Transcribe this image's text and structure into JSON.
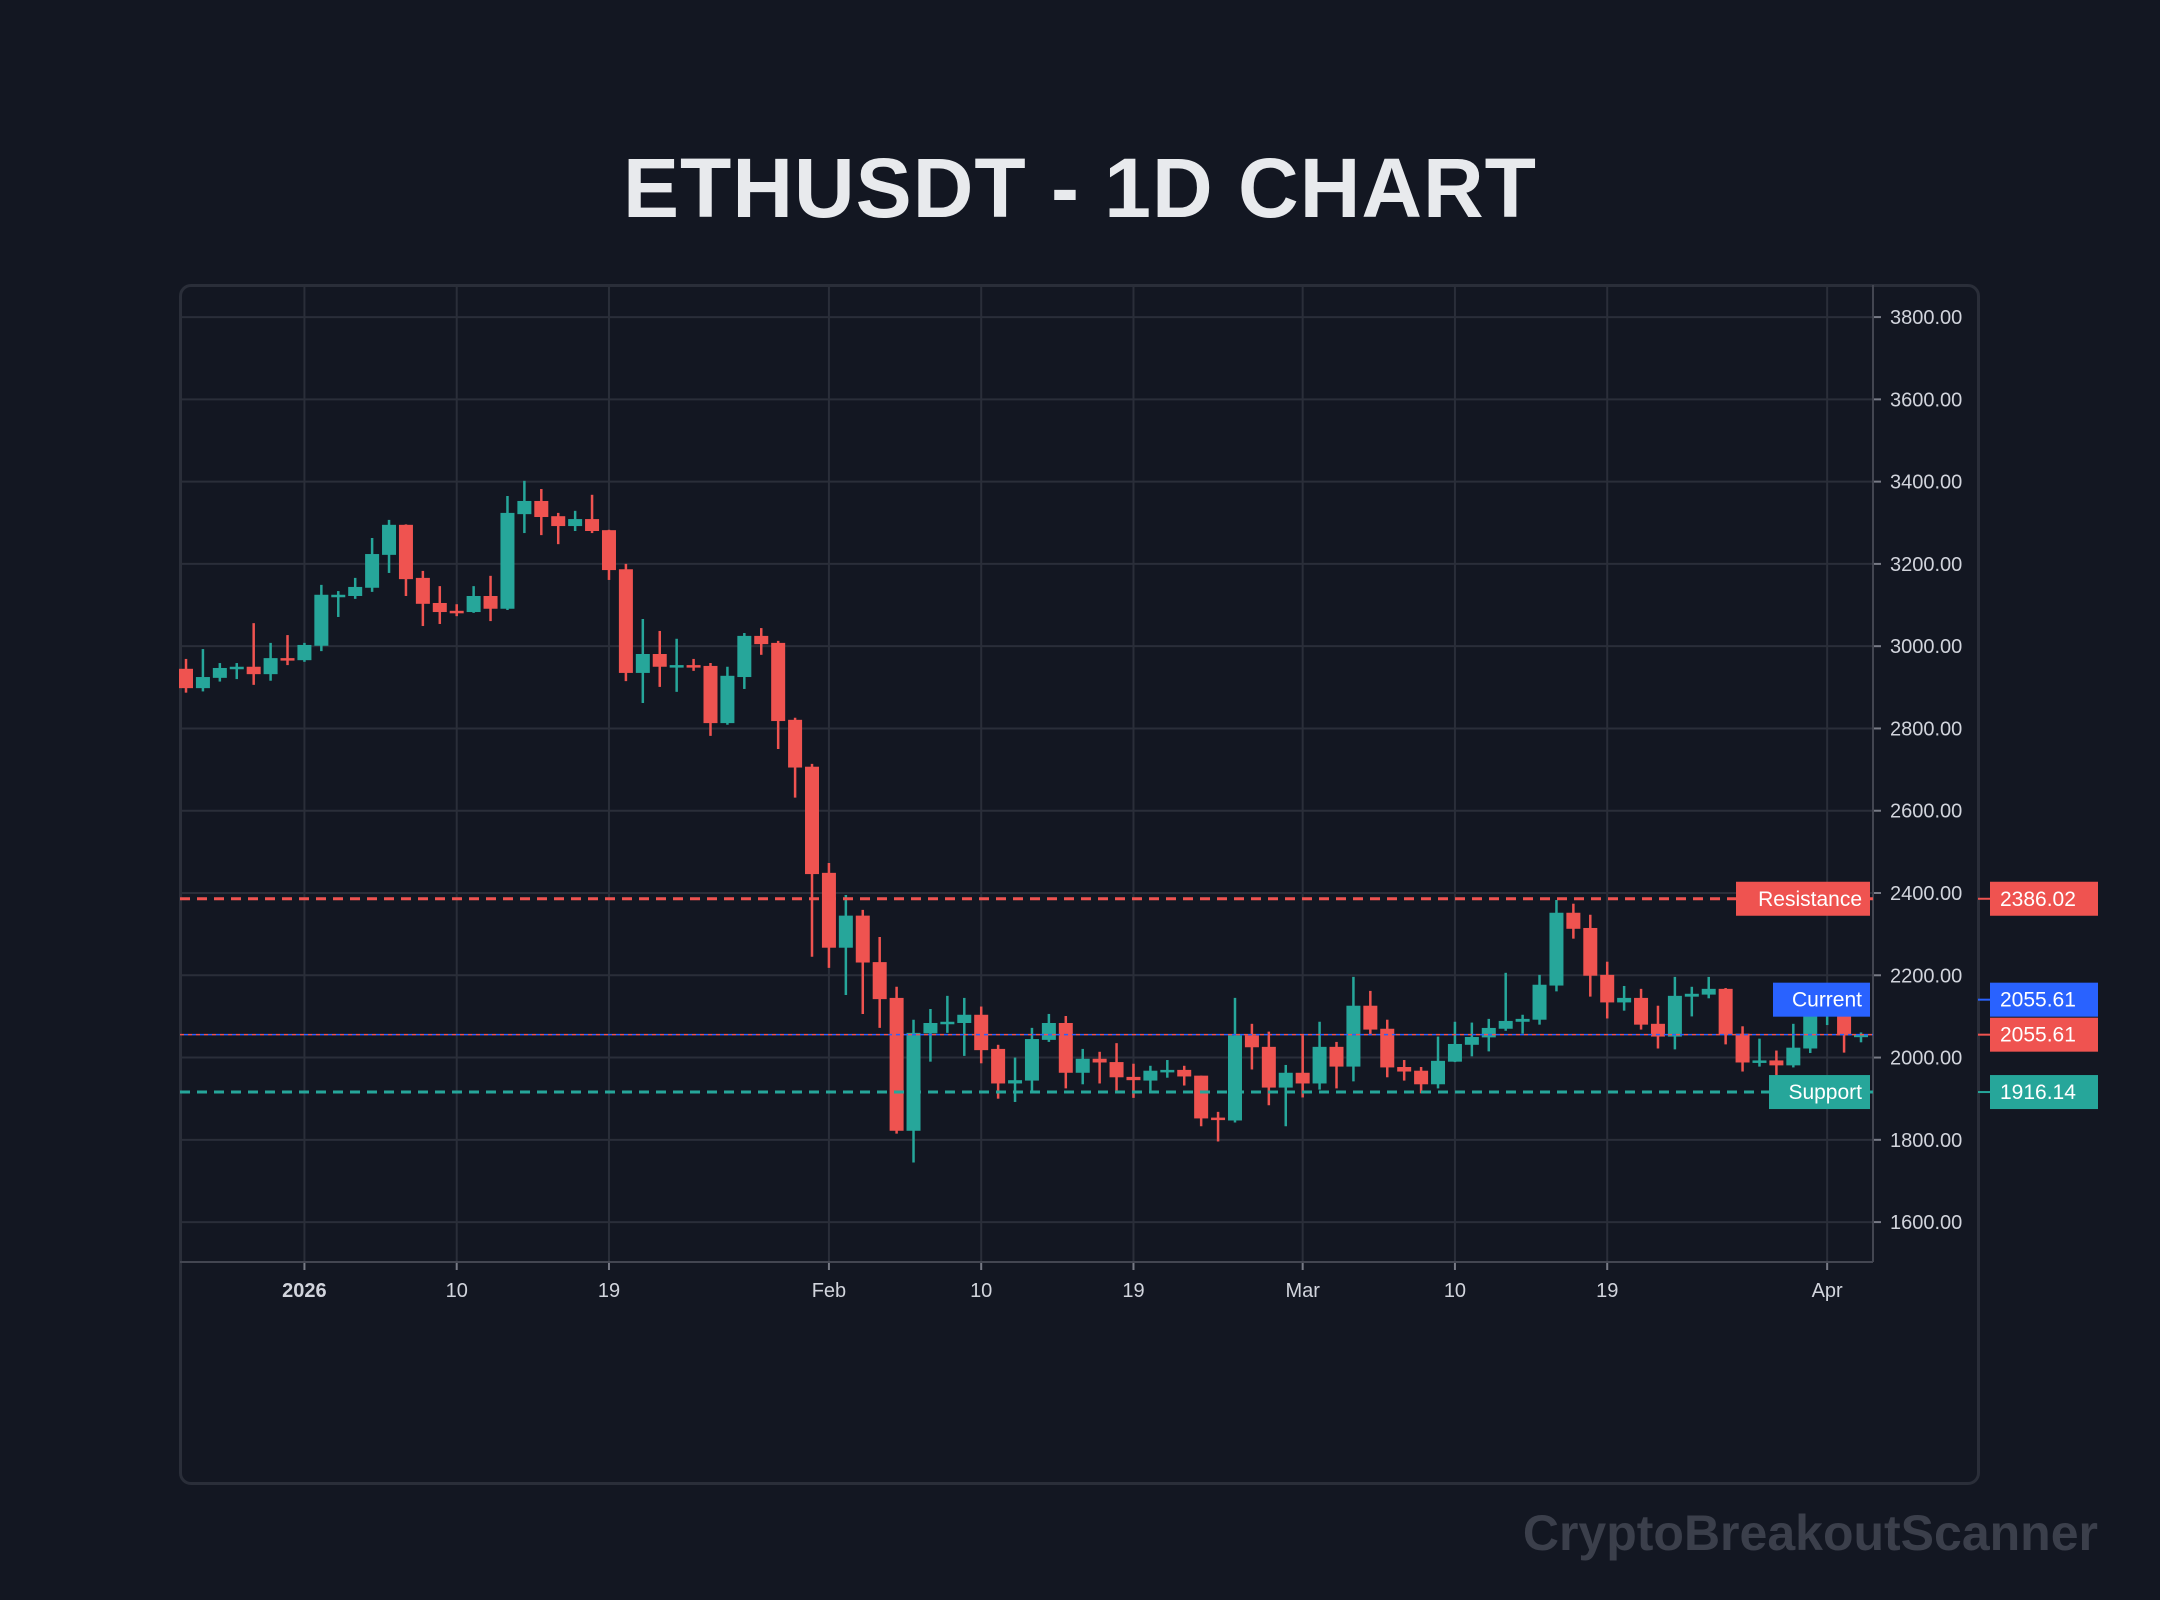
{
  "title": "ETHUSDT - 1D CHART",
  "watermark": "CryptoBreakoutScanner",
  "colors": {
    "background": "#131722",
    "grid": "#2a2e39",
    "up": "#26a69a",
    "down": "#ef5350",
    "current": "#2962ff",
    "text": "#d1d4dc"
  },
  "chart_data": {
    "type": "candlestick",
    "title": "ETHUSDT - 1D CHART",
    "xlabel": "",
    "ylabel": "",
    "ylim": [
      1503,
      3878
    ],
    "grid": true,
    "y_ticks": [
      "1600.00",
      "1800.00",
      "2000.00",
      "2200.00",
      "2400.00",
      "2600.00",
      "2800.00",
      "3000.00",
      "3200.00",
      "3400.00",
      "3600.00",
      "3800.00"
    ],
    "x_ticks": [
      {
        "date": "2026-01-01",
        "label": "2026",
        "bold": true
      },
      {
        "date": "2026-01-10",
        "label": "10"
      },
      {
        "date": "2026-01-19",
        "label": "19"
      },
      {
        "date": "2026-02-01",
        "label": "Feb"
      },
      {
        "date": "2026-02-10",
        "label": "10"
      },
      {
        "date": "2026-02-19",
        "label": "19"
      },
      {
        "date": "2026-03-01",
        "label": "Mar"
      },
      {
        "date": "2026-03-10",
        "label": "10"
      },
      {
        "date": "2026-03-19",
        "label": "19"
      },
      {
        "date": "2026-04-01",
        "label": "Apr"
      }
    ],
    "levels": [
      {
        "name": "Resistance",
        "value": 2386.02,
        "label": "2386.02",
        "color": "#ef5350",
        "style": "dashed"
      },
      {
        "name": "Current",
        "value": 2055.61,
        "label": "2055.61",
        "color": "#2962ff",
        "style": "dotted"
      },
      {
        "name": "Support",
        "value": 1916.14,
        "label": "1916.14",
        "color": "#26a69a",
        "style": "dashed"
      }
    ],
    "last_price": {
      "value": 2055.61,
      "label": "2055.61"
    },
    "candle_fields": [
      "date",
      "open",
      "high",
      "low",
      "close"
    ],
    "candles": [
      [
        "2025-12-25",
        2945,
        2969,
        2887,
        2898
      ],
      [
        "2025-12-26",
        2898,
        2993,
        2890,
        2925
      ],
      [
        "2025-12-27",
        2923,
        2959,
        2914,
        2947
      ],
      [
        "2025-12-28",
        2946,
        2959,
        2920,
        2950
      ],
      [
        "2025-12-29",
        2950,
        3056,
        2906,
        2932
      ],
      [
        "2025-12-30",
        2932,
        3008,
        2916,
        2971
      ],
      [
        "2025-12-31",
        2971,
        3027,
        2954,
        2966
      ],
      [
        "2026-01-01",
        2966,
        3008,
        2962,
        3003
      ],
      [
        "2026-01-02",
        3001,
        3149,
        2988,
        3125
      ],
      [
        "2026-01-03",
        3122,
        3134,
        3071,
        3125
      ],
      [
        "2026-01-04",
        3122,
        3166,
        3115,
        3144
      ],
      [
        "2026-01-05",
        3142,
        3263,
        3132,
        3224
      ],
      [
        "2026-01-06",
        3222,
        3307,
        3178,
        3295
      ],
      [
        "2026-01-07",
        3295,
        3296,
        3122,
        3163
      ],
      [
        "2026-01-08",
        3166,
        3183,
        3049,
        3103
      ],
      [
        "2026-01-09",
        3105,
        3146,
        3054,
        3083
      ],
      [
        "2026-01-10",
        3086,
        3102,
        3073,
        3083
      ],
      [
        "2026-01-11",
        3083,
        3146,
        3081,
        3122
      ],
      [
        "2026-01-12",
        3122,
        3171,
        3061,
        3091
      ],
      [
        "2026-01-13",
        3091,
        3365,
        3088,
        3324
      ],
      [
        "2026-01-14",
        3321,
        3402,
        3275,
        3353
      ],
      [
        "2026-01-15",
        3353,
        3382,
        3270,
        3314
      ],
      [
        "2026-01-16",
        3316,
        3324,
        3248,
        3292
      ],
      [
        "2026-01-17",
        3292,
        3329,
        3280,
        3309
      ],
      [
        "2026-01-18",
        3309,
        3368,
        3275,
        3280
      ],
      [
        "2026-01-19",
        3282,
        3283,
        3161,
        3185
      ],
      [
        "2026-01-20",
        3187,
        3200,
        2915,
        2935
      ],
      [
        "2026-01-21",
        2935,
        3066,
        2862,
        2981
      ],
      [
        "2026-01-22",
        2981,
        3037,
        2901,
        2950
      ],
      [
        "2026-01-23",
        2950,
        3018,
        2889,
        2954
      ],
      [
        "2026-01-24",
        2954,
        2969,
        2940,
        2950
      ],
      [
        "2026-01-25",
        2952,
        2959,
        2782,
        2813
      ],
      [
        "2026-01-26",
        2813,
        2950,
        2809,
        2928
      ],
      [
        "2026-01-27",
        2925,
        3032,
        2896,
        3025
      ],
      [
        "2026-01-28",
        3025,
        3044,
        2979,
        3005
      ],
      [
        "2026-01-29",
        3008,
        3013,
        2750,
        2818
      ],
      [
        "2026-01-30",
        2821,
        2826,
        2632,
        2705
      ],
      [
        "2026-01-31",
        2707,
        2714,
        2245,
        2446
      ],
      [
        "2026-02-01",
        2449,
        2473,
        2218,
        2267
      ],
      [
        "2026-02-02",
        2267,
        2395,
        2152,
        2345
      ],
      [
        "2026-02-03",
        2345,
        2359,
        2106,
        2231
      ],
      [
        "2026-02-04",
        2232,
        2293,
        2072,
        2142
      ],
      [
        "2026-02-05",
        2145,
        2172,
        1815,
        1822
      ],
      [
        "2026-02-06",
        1822,
        2092,
        1745,
        2060
      ],
      [
        "2026-02-07",
        2059,
        2118,
        1990,
        2084
      ],
      [
        "2026-02-08",
        2084,
        2150,
        2060,
        2087
      ],
      [
        "2026-02-09",
        2084,
        2145,
        2004,
        2104
      ],
      [
        "2026-02-10",
        2104,
        2124,
        1986,
        2018
      ],
      [
        "2026-02-11",
        2021,
        2031,
        1900,
        1937
      ],
      [
        "2026-02-12",
        1937,
        2000,
        1892,
        1945
      ],
      [
        "2026-02-13",
        1944,
        2072,
        1917,
        2045
      ],
      [
        "2026-02-14",
        2043,
        2106,
        2038,
        2084
      ],
      [
        "2026-02-15",
        2084,
        2101,
        1925,
        1963
      ],
      [
        "2026-02-16",
        1963,
        2021,
        1935,
        1997
      ],
      [
        "2026-02-17",
        1997,
        2014,
        1937,
        1988
      ],
      [
        "2026-02-18",
        1989,
        2035,
        1920,
        1952
      ],
      [
        "2026-02-19",
        1953,
        1985,
        1902,
        1945
      ],
      [
        "2026-02-20",
        1944,
        1980,
        1920,
        1968
      ],
      [
        "2026-02-21",
        1965,
        1994,
        1951,
        1970
      ],
      [
        "2026-02-22",
        1970,
        1980,
        1932,
        1954
      ],
      [
        "2026-02-23",
        1956,
        1956,
        1833,
        1852
      ],
      [
        "2026-02-24",
        1854,
        1868,
        1796,
        1848
      ],
      [
        "2026-02-25",
        1847,
        2145,
        1842,
        2054
      ],
      [
        "2026-02-26",
        2054,
        2082,
        1971,
        2025
      ],
      [
        "2026-02-27",
        2026,
        2063,
        1884,
        1927
      ],
      [
        "2026-02-28",
        1927,
        1982,
        1833,
        1963
      ],
      [
        "2026-03-01",
        1963,
        2054,
        1903,
        1937
      ],
      [
        "2026-03-02",
        1937,
        2087,
        1922,
        2026
      ],
      [
        "2026-03-03",
        2026,
        2038,
        1925,
        1978
      ],
      [
        "2026-03-04",
        1978,
        2196,
        1942,
        2126
      ],
      [
        "2026-03-05",
        2126,
        2162,
        2054,
        2068
      ],
      [
        "2026-03-06",
        2070,
        2092,
        1952,
        1976
      ],
      [
        "2026-03-07",
        1977,
        1994,
        1944,
        1966
      ],
      [
        "2026-03-08",
        1968,
        1977,
        1913,
        1935
      ],
      [
        "2026-03-09",
        1935,
        2051,
        1925,
        1992
      ],
      [
        "2026-03-10",
        1990,
        2087,
        1989,
        2033
      ],
      [
        "2026-03-11",
        2031,
        2085,
        2003,
        2050
      ],
      [
        "2026-03-12",
        2049,
        2094,
        2015,
        2072
      ],
      [
        "2026-03-13",
        2070,
        2206,
        2065,
        2089
      ],
      [
        "2026-03-14",
        2087,
        2104,
        2058,
        2094
      ],
      [
        "2026-03-15",
        2092,
        2201,
        2080,
        2177
      ],
      [
        "2026-03-16",
        2175,
        2383,
        2161,
        2352
      ],
      [
        "2026-03-17",
        2352,
        2374,
        2289,
        2313
      ],
      [
        "2026-03-18",
        2315,
        2347,
        2148,
        2199
      ],
      [
        "2026-03-19",
        2201,
        2233,
        2095,
        2134
      ],
      [
        "2026-03-20",
        2134,
        2174,
        2114,
        2145
      ],
      [
        "2026-03-21",
        2145,
        2167,
        2068,
        2080
      ],
      [
        "2026-03-22",
        2082,
        2126,
        2022,
        2051
      ],
      [
        "2026-03-23",
        2051,
        2196,
        2020,
        2150
      ],
      [
        "2026-03-24",
        2148,
        2172,
        2100,
        2155
      ],
      [
        "2026-03-25",
        2153,
        2196,
        2144,
        2167
      ],
      [
        "2026-03-26",
        2167,
        2169,
        2032,
        2056
      ],
      [
        "2026-03-27",
        2058,
        2076,
        1966,
        1988
      ],
      [
        "2026-03-28",
        1988,
        2046,
        1978,
        1993
      ],
      [
        "2026-03-29",
        1993,
        2017,
        1935,
        1981
      ],
      [
        "2026-03-30",
        1981,
        2082,
        1976,
        2024
      ],
      [
        "2026-03-31",
        2022,
        2118,
        2011,
        2104
      ],
      [
        "2026-04-01",
        2102,
        2165,
        2079,
        2136
      ],
      [
        "2026-04-02",
        2137,
        2157,
        2012,
        2054
      ],
      [
        "2026-04-03",
        2054,
        2061,
        2037,
        2055.61
      ]
    ]
  }
}
